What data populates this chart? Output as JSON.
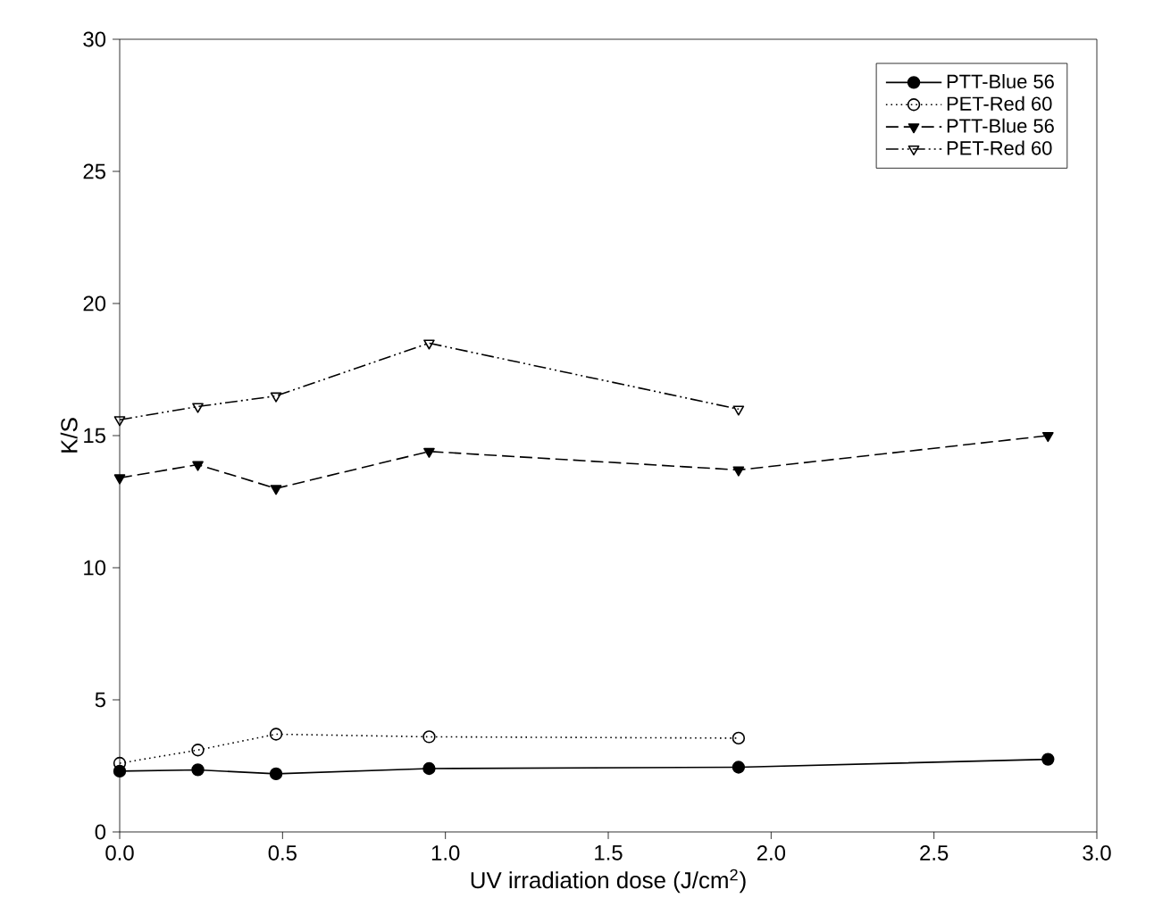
{
  "chart_data": {
    "type": "line",
    "xlabel": "UV  irradiation dose (J/cm$^{2}$)",
    "ylabel": "K/S",
    "xlim": [
      0,
      3
    ],
    "ylim": [
      0,
      30
    ],
    "xticks": [
      {
        "value": 0,
        "label": "0.0"
      },
      {
        "value": 0.5,
        "label": "0.5"
      },
      {
        "value": 1,
        "label": "1.0"
      },
      {
        "value": 1.5,
        "label": "1.5"
      },
      {
        "value": 2,
        "label": "2.0"
      },
      {
        "value": 2.5,
        "label": "2.5"
      },
      {
        "value": 3,
        "label": "3.0"
      }
    ],
    "yticks": [
      0,
      5,
      10,
      15,
      20,
      25,
      30
    ],
    "legend": "top right",
    "grid": false,
    "series": [
      {
        "name": "PTT-Blue 56",
        "color": "#000000",
        "marker": "circle",
        "line_style": "solid",
        "x": [
          0,
          0.24,
          0.48,
          0.95,
          1.9,
          2.85
        ],
        "values": [
          2.3,
          2.35,
          2.2,
          2.4,
          2.45,
          2.75
        ]
      },
      {
        "name": "PET-Red 60",
        "color": "#000000",
        "marker": "circle_open",
        "line_style": "dotted",
        "x": [
          0,
          0.24,
          0.48,
          0.95,
          1.9
        ],
        "values": [
          2.6,
          3.1,
          3.7,
          3.6,
          3.55
        ]
      },
      {
        "name": "PTT-Blue 56",
        "color": "#000000",
        "marker": "triangle_down",
        "line_style": "dashed",
        "x": [
          0,
          0.24,
          0.48,
          0.95,
          1.9,
          2.85
        ],
        "values": [
          13.4,
          13.9,
          13.0,
          14.4,
          13.7,
          15.0
        ]
      },
      {
        "name": "PET-Red 60",
        "color": "#000000",
        "marker": "triangle_down_open",
        "line_style": "dashdotdotted",
        "x": [
          0,
          0.24,
          0.48,
          0.95,
          1.9
        ],
        "values": [
          15.6,
          16.1,
          16.5,
          18.5,
          16.0
        ]
      }
    ]
  }
}
